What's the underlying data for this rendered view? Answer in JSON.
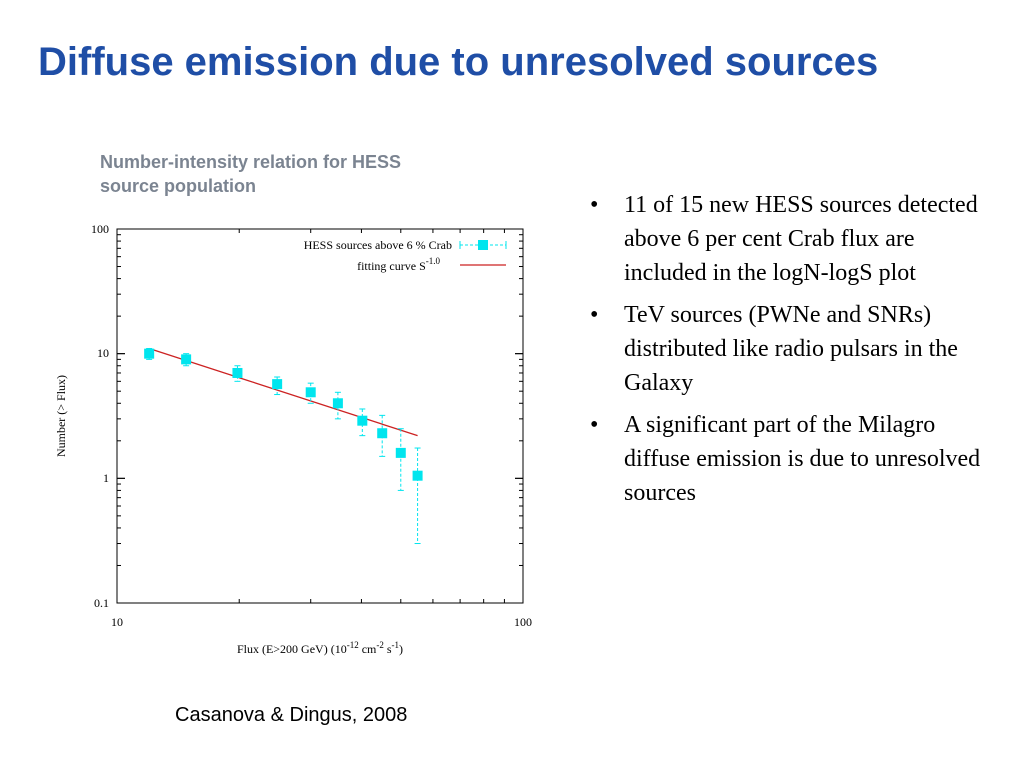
{
  "slide": {
    "title": "Diffuse emission due to unresolved sources",
    "chart_caption": [
      "Number-intensity relation for HESS",
      "source population"
    ],
    "bullet_glyph": "•",
    "bullets": [
      "11 of 15 new HESS sources detected above 6 per cent Crab flux are included in the logN-logS plot",
      "TeV sources (PWNe and SNRs) distributed like radio pulsars in the Galaxy",
      "A significant part of the Milagro diffuse emission is due to unresolved sources"
    ],
    "citation": "Casanova & Dingus,  2008"
  },
  "chart_data": {
    "type": "scatter",
    "xscale": "log",
    "yscale": "log",
    "xlim": [
      10,
      100
    ],
    "ylim": [
      0.1,
      100
    ],
    "xticks": [
      "10",
      "100"
    ],
    "yticks": [
      "100",
      "10",
      "1",
      "0.1"
    ],
    "xlabel": {
      "main": "Flux (E>200 GeV) (10",
      "e1": "-12",
      "mid": " cm",
      "e2": "-2",
      "mid2": " s",
      "e3": "-1",
      "end": ")"
    },
    "ylabel": "Number (> Flux)",
    "colors": {
      "points": "#00e5ee",
      "fit": "#cc2222",
      "axis": "#000000"
    },
    "series": [
      {
        "name": "HESS sources above 6 % Crab",
        "x": [
          12.0,
          14.8,
          19.8,
          24.8,
          30.0,
          35.0,
          40.2,
          45.0,
          50.0,
          55.0
        ],
        "y": [
          10.0,
          9.0,
          7.0,
          5.7,
          4.9,
          4.0,
          2.9,
          2.3,
          1.6,
          1.05
        ],
        "yerr_low": [
          9.0,
          8.0,
          6.0,
          4.7,
          4.0,
          3.0,
          2.2,
          1.5,
          0.8,
          0.3
        ],
        "yerr_high": [
          11.0,
          10.0,
          8.0,
          6.5,
          5.8,
          4.9,
          3.6,
          3.2,
          2.5,
          1.75
        ]
      }
    ],
    "fit": {
      "name": "fitting curve S",
      "exponent": "-1.0",
      "x": [
        12.0,
        55.0
      ],
      "y": [
        11.0,
        2.2
      ]
    },
    "legend_position": "top-right"
  }
}
